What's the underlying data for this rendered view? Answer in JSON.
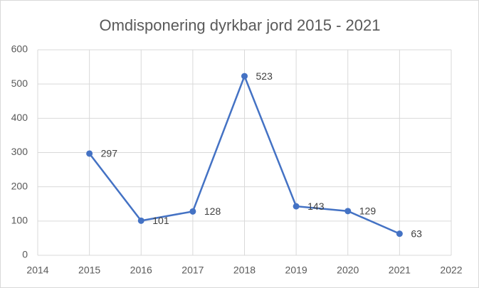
{
  "chart_data": {
    "type": "line",
    "title": "Omdisponering dyrkbar jord 2015 - 2021",
    "x": [
      2015,
      2016,
      2017,
      2018,
      2019,
      2020,
      2021
    ],
    "series": [
      {
        "name": "Omdisponering dyrkbar jord",
        "color": "#4472c4",
        "values": [
          297,
          101,
          128,
          523,
          143,
          129,
          63
        ]
      }
    ],
    "xlim": [
      2014,
      2022
    ],
    "xticks": [
      2014,
      2015,
      2016,
      2017,
      2018,
      2019,
      2020,
      2021,
      2022
    ],
    "ylim": [
      0,
      600
    ],
    "yticks": [
      0,
      100,
      200,
      300,
      400,
      500,
      600
    ],
    "grid": true
  }
}
